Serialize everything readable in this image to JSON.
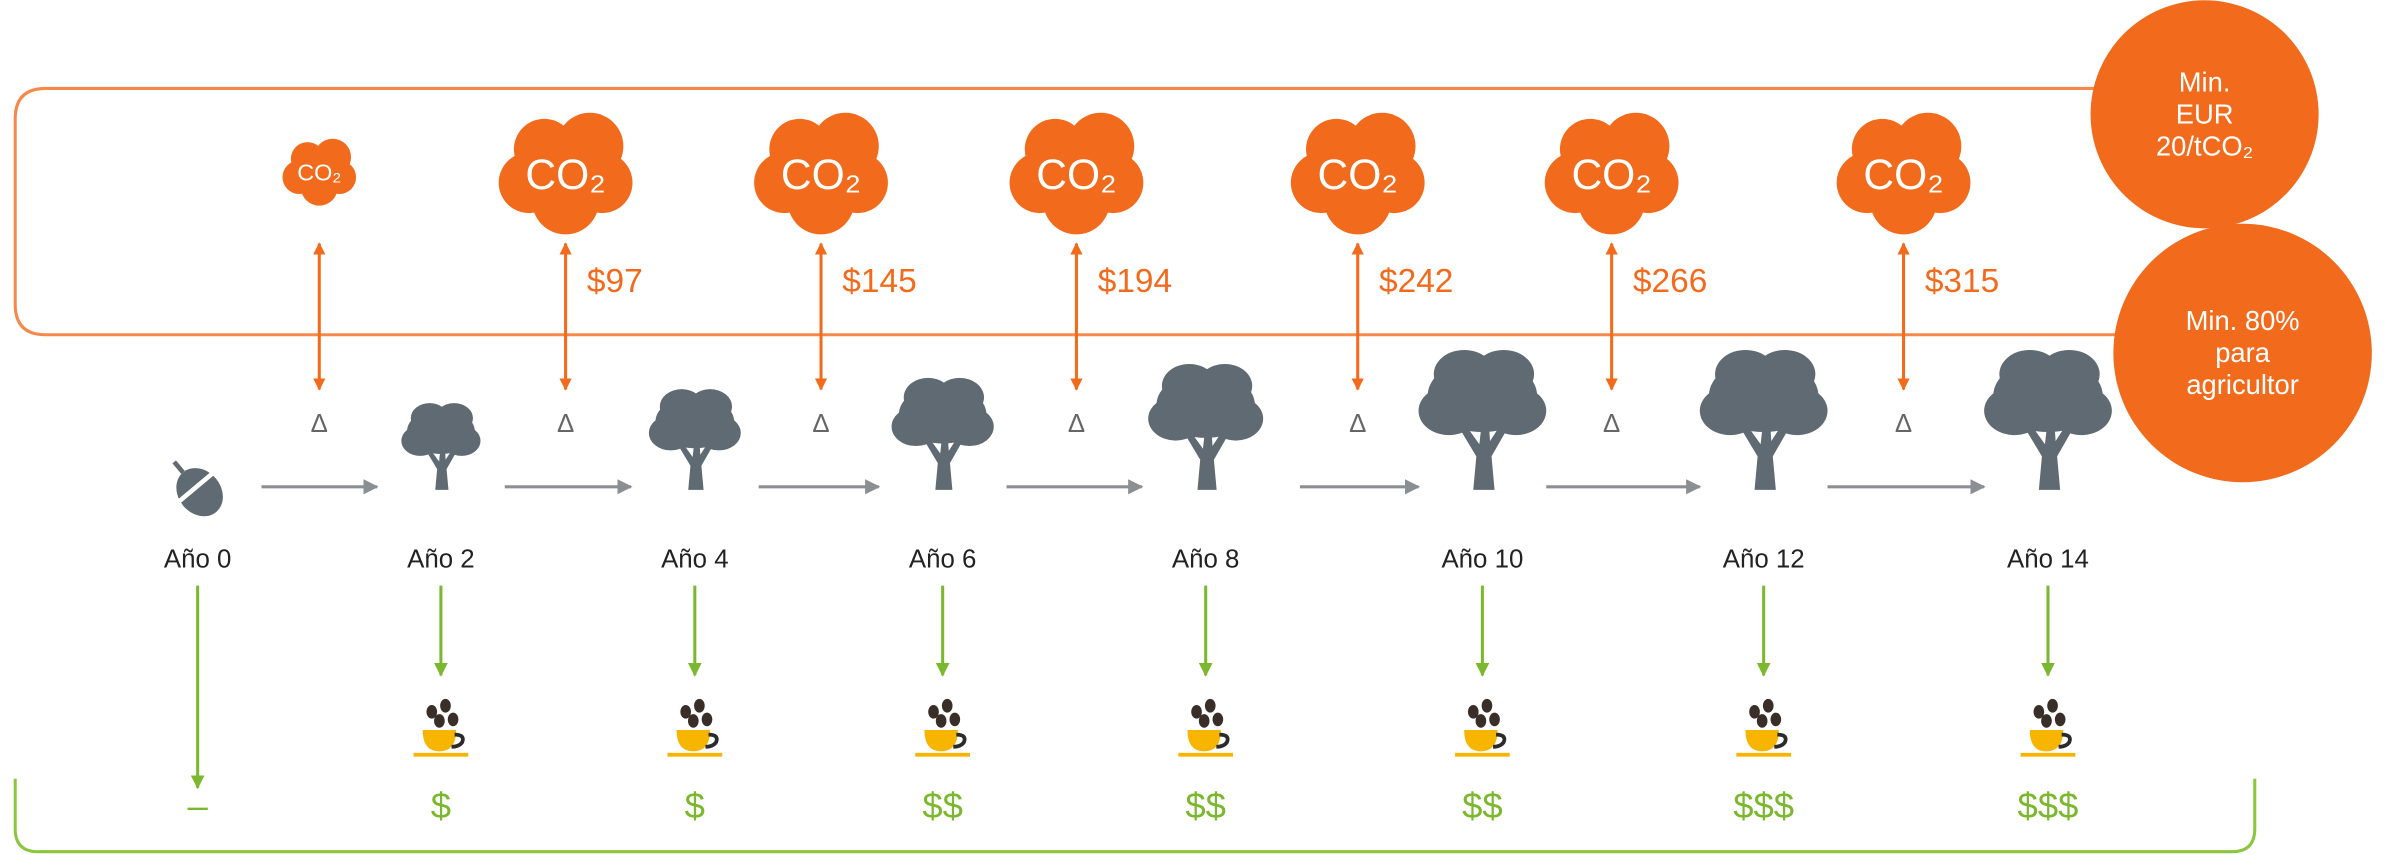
{
  "badges": [
    {
      "lines": [
        "Min.",
        "EUR",
        "20/tCO₂"
      ]
    },
    {
      "lines": [
        "Min. 80%",
        "para",
        "agricultor"
      ]
    }
  ],
  "cloud_label": "CO₂",
  "intervals": [
    {
      "delta": "Δ"
    },
    {
      "delta": "Δ",
      "price": "$97"
    },
    {
      "delta": "Δ",
      "price": "$145"
    },
    {
      "delta": "Δ",
      "price": "$194"
    },
    {
      "delta": "Δ",
      "price": "$242"
    },
    {
      "delta": "Δ",
      "price": "$266"
    },
    {
      "delta": "Δ",
      "price": "$315"
    }
  ],
  "stages": [
    {
      "label": "Año 0",
      "income": "–"
    },
    {
      "label": "Año 2",
      "income": "$"
    },
    {
      "label": "Año 4",
      "income": "$"
    },
    {
      "label": "Año 6",
      "income": "$$"
    },
    {
      "label": "Año 8",
      "income": "$$"
    },
    {
      "label": "Año 10",
      "income": "$$"
    },
    {
      "label": "Año 12",
      "income": "$$$"
    },
    {
      "label": "Año 14",
      "income": "$$$"
    }
  ]
}
